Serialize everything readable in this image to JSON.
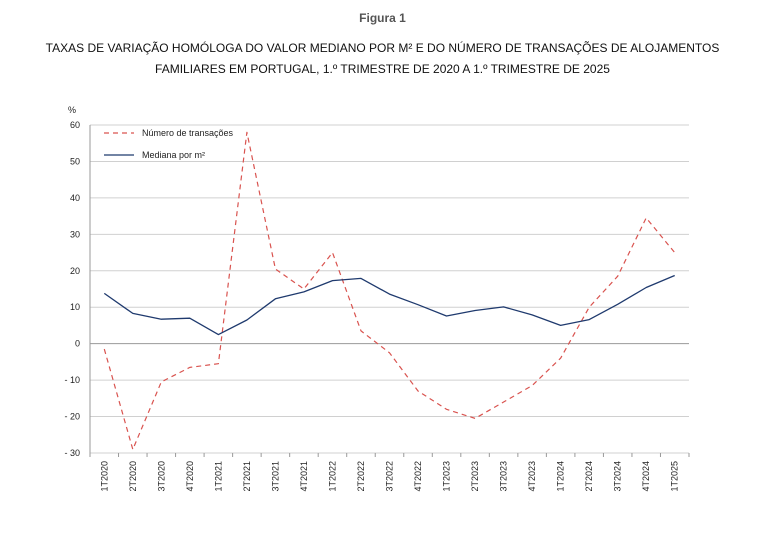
{
  "figure_label": "Figura 1",
  "chart_data": {
    "type": "line",
    "title": "TAXAS DE VARIAÇÃO HOMÓLOGA DO VALOR MEDIANO POR M² E DO NÚMERO DE TRANSAÇÕES DE ALOJAMENTOS FAMILIARES EM PORTUGAL, 1.º TRIMESTRE DE 2020 A 1.º TRIMESTRE DE 2025",
    "title_line1": "TAXAS DE VARIAÇÃO HOMÓLOGA DO VALOR MEDIANO POR M² E DO NÚMERO DE TRANSAÇÕES DE ALOJAMENTOS",
    "title_line2": "FAMILIARES EM PORTUGAL, 1.º TRIMESTRE DE 2020 A 1.º TRIMESTRE DE 2025",
    "ylabel": "%",
    "ylim": [
      -30,
      60
    ],
    "yticks": [
      60,
      50,
      40,
      30,
      20,
      10,
      0,
      -10,
      -20,
      -30
    ],
    "ytick_labels": [
      "60",
      "50",
      "40",
      "30",
      "20",
      "10",
      "0",
      "- 10",
      "- 20",
      "- 30"
    ],
    "grid": true,
    "legend_position": "top-left",
    "categories": [
      "1T2020",
      "2T2020",
      "3T2020",
      "4T2020",
      "1T2021",
      "2T2021",
      "3T2021",
      "4T2021",
      "1T2022",
      "2T2022",
      "3T2022",
      "4T2022",
      "1T2023",
      "2T2023",
      "3T2023",
      "4T2023",
      "1T2024",
      "2T2024",
      "3T2024",
      "4T2024",
      "1T2025"
    ],
    "series": [
      {
        "name": "Número de transações",
        "color": "#d9534f",
        "style": "dashed",
        "values": [
          -1.5,
          -29,
          -10.5,
          -6.5,
          -5.5,
          58,
          20.5,
          15,
          25,
          3.5,
          -2.5,
          -13,
          -18,
          -20.5,
          -16,
          -11.5,
          -4,
          10,
          18.5,
          34.5,
          25
        ]
      },
      {
        "name": "Mediana por m²",
        "color": "#1f3a6e",
        "style": "solid",
        "values": [
          13.8,
          8.3,
          6.7,
          7.0,
          2.5,
          6.5,
          12.3,
          14.2,
          17.3,
          17.9,
          13.6,
          10.7,
          7.6,
          9.1,
          10.1,
          7.9,
          5.0,
          6.6,
          10.8,
          15.4,
          18.7
        ]
      }
    ]
  }
}
